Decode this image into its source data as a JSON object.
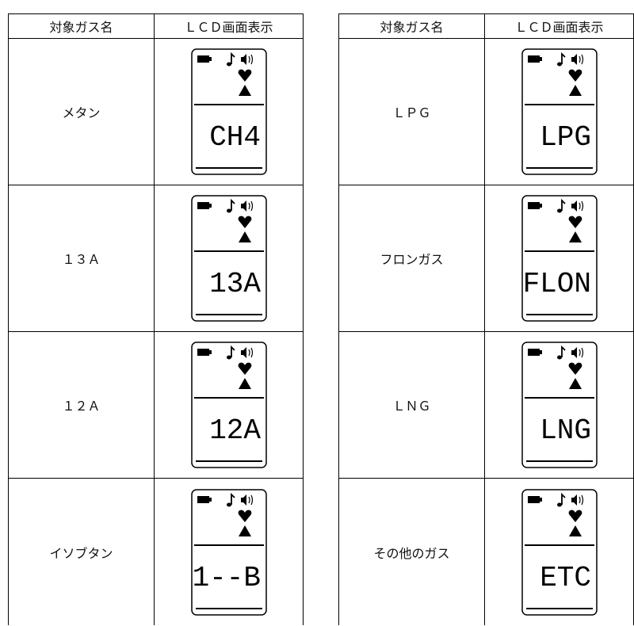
{
  "tables": [
    {
      "header": [
        "対象ガス名",
        "ＬＣＤ画面表示"
      ],
      "rows": [
        {
          "gas": "メタン",
          "lcd": "CH4"
        },
        {
          "gas": "１３Ａ",
          "lcd": "13A"
        },
        {
          "gas": "１２Ａ",
          "lcd": "12A"
        },
        {
          "gas": "イソブタン",
          "lcd": "1--B"
        }
      ]
    },
    {
      "header": [
        "対象ガス名",
        "ＬＣＤ画面表示"
      ],
      "rows": [
        {
          "gas": "ＬＰＧ",
          "lcd": "LPG"
        },
        {
          "gas": "フロンガス",
          "lcd": "FLON"
        },
        {
          "gas": "ＬＮＧ",
          "lcd": "LNG"
        },
        {
          "gas": "その他のガス",
          "lcd": "ETC"
        }
      ]
    }
  ]
}
